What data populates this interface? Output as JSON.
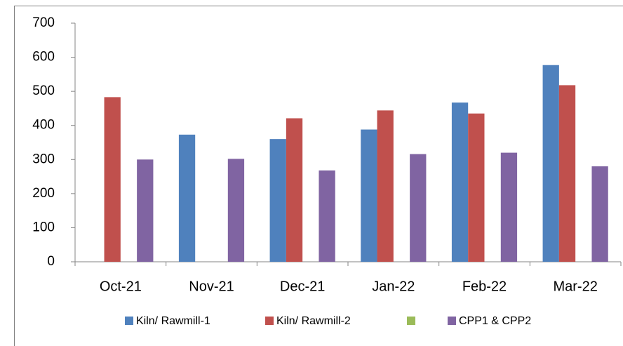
{
  "chart_data": {
    "type": "bar",
    "categories": [
      "Oct-21",
      "Nov-21",
      "Dec-21",
      "Jan-22",
      "Feb-22",
      "Mar-22"
    ],
    "series": [
      {
        "name": "Kiln/ Rawmill-1",
        "color": "#4f81bd",
        "values": [
          null,
          373,
          360,
          388,
          467,
          577
        ]
      },
      {
        "name": "Kiln/ Rawmill-2",
        "color": "#c0504d",
        "values": [
          483,
          null,
          421,
          444,
          435,
          518
        ]
      },
      {
        "name": null,
        "color": "#9bbb59",
        "values": [
          null,
          null,
          null,
          null,
          null,
          null
        ]
      },
      {
        "name": "CPP1 & CPP2",
        "color": "#8064a2",
        "values": [
          300,
          302,
          268,
          316,
          320,
          280
        ]
      }
    ],
    "ylim": [
      0,
      700
    ],
    "yticks": [
      0,
      100,
      200,
      300,
      400,
      500,
      600,
      700
    ],
    "grid": false
  }
}
